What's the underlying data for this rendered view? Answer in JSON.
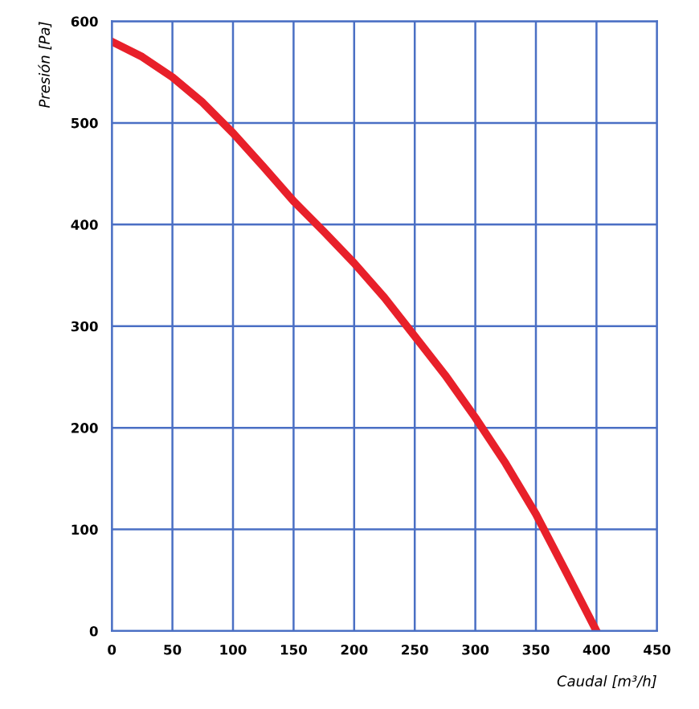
{
  "chart_data": {
    "type": "line",
    "xlabel": "Caudal [m³/h]",
    "ylabel": "Presión [Pa]",
    "x": [
      0,
      25,
      50,
      75,
      100,
      125,
      150,
      175,
      200,
      225,
      250,
      275,
      300,
      325,
      350,
      375,
      400
    ],
    "series": [
      {
        "color": "#e8202a",
        "values": [
          580,
          565,
          545,
          520,
          490,
          457,
          423,
          393,
          362,
          328,
          290,
          252,
          210,
          165,
          115,
          58,
          0
        ]
      }
    ],
    "xlim": [
      0,
      450
    ],
    "xticks": [
      0,
      50,
      100,
      150,
      200,
      250,
      300,
      350,
      400,
      450
    ],
    "ylim": [
      0,
      600
    ],
    "yticks": [
      0,
      100,
      200,
      300,
      400,
      500,
      600
    ],
    "grid": true,
    "marker": "none",
    "line_style": "solid"
  }
}
